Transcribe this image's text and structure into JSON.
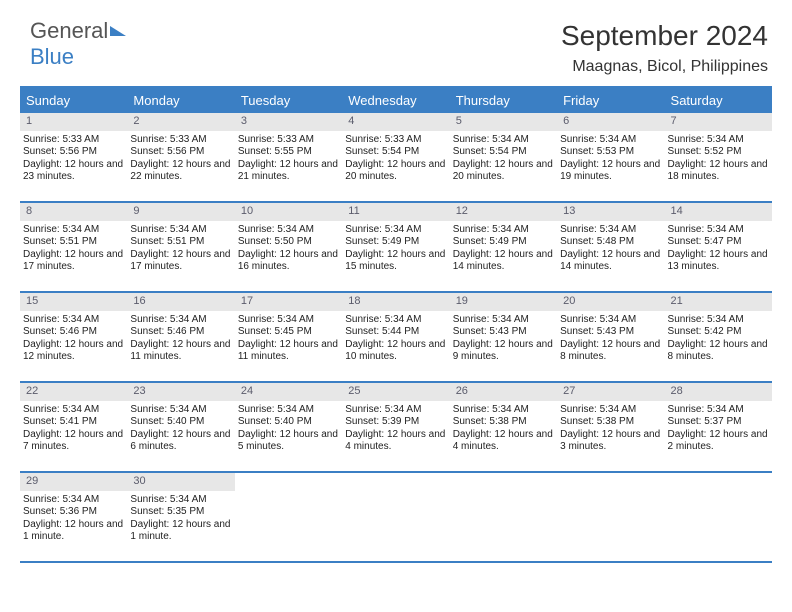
{
  "logo": {
    "text1": "General",
    "text2": "Blue"
  },
  "title": "September 2024",
  "location": "Maagnas, Bicol, Philippines",
  "colors": {
    "header_bg": "#3b7fc4",
    "header_text": "#ffffff",
    "daynum_bg": "#e7e7e7",
    "daynum_text": "#5b5c6c",
    "body_text": "#222222",
    "page_bg": "#ffffff"
  },
  "weekdays": [
    "Sunday",
    "Monday",
    "Tuesday",
    "Wednesday",
    "Thursday",
    "Friday",
    "Saturday"
  ],
  "weeks": [
    [
      {
        "day": "1",
        "sunrise": "Sunrise: 5:33 AM",
        "sunset": "Sunset: 5:56 PM",
        "daylight": "Daylight: 12 hours and 23 minutes."
      },
      {
        "day": "2",
        "sunrise": "Sunrise: 5:33 AM",
        "sunset": "Sunset: 5:56 PM",
        "daylight": "Daylight: 12 hours and 22 minutes."
      },
      {
        "day": "3",
        "sunrise": "Sunrise: 5:33 AM",
        "sunset": "Sunset: 5:55 PM",
        "daylight": "Daylight: 12 hours and 21 minutes."
      },
      {
        "day": "4",
        "sunrise": "Sunrise: 5:33 AM",
        "sunset": "Sunset: 5:54 PM",
        "daylight": "Daylight: 12 hours and 20 minutes."
      },
      {
        "day": "5",
        "sunrise": "Sunrise: 5:34 AM",
        "sunset": "Sunset: 5:54 PM",
        "daylight": "Daylight: 12 hours and 20 minutes."
      },
      {
        "day": "6",
        "sunrise": "Sunrise: 5:34 AM",
        "sunset": "Sunset: 5:53 PM",
        "daylight": "Daylight: 12 hours and 19 minutes."
      },
      {
        "day": "7",
        "sunrise": "Sunrise: 5:34 AM",
        "sunset": "Sunset: 5:52 PM",
        "daylight": "Daylight: 12 hours and 18 minutes."
      }
    ],
    [
      {
        "day": "8",
        "sunrise": "Sunrise: 5:34 AM",
        "sunset": "Sunset: 5:51 PM",
        "daylight": "Daylight: 12 hours and 17 minutes."
      },
      {
        "day": "9",
        "sunrise": "Sunrise: 5:34 AM",
        "sunset": "Sunset: 5:51 PM",
        "daylight": "Daylight: 12 hours and 17 minutes."
      },
      {
        "day": "10",
        "sunrise": "Sunrise: 5:34 AM",
        "sunset": "Sunset: 5:50 PM",
        "daylight": "Daylight: 12 hours and 16 minutes."
      },
      {
        "day": "11",
        "sunrise": "Sunrise: 5:34 AM",
        "sunset": "Sunset: 5:49 PM",
        "daylight": "Daylight: 12 hours and 15 minutes."
      },
      {
        "day": "12",
        "sunrise": "Sunrise: 5:34 AM",
        "sunset": "Sunset: 5:49 PM",
        "daylight": "Daylight: 12 hours and 14 minutes."
      },
      {
        "day": "13",
        "sunrise": "Sunrise: 5:34 AM",
        "sunset": "Sunset: 5:48 PM",
        "daylight": "Daylight: 12 hours and 14 minutes."
      },
      {
        "day": "14",
        "sunrise": "Sunrise: 5:34 AM",
        "sunset": "Sunset: 5:47 PM",
        "daylight": "Daylight: 12 hours and 13 minutes."
      }
    ],
    [
      {
        "day": "15",
        "sunrise": "Sunrise: 5:34 AM",
        "sunset": "Sunset: 5:46 PM",
        "daylight": "Daylight: 12 hours and 12 minutes."
      },
      {
        "day": "16",
        "sunrise": "Sunrise: 5:34 AM",
        "sunset": "Sunset: 5:46 PM",
        "daylight": "Daylight: 12 hours and 11 minutes."
      },
      {
        "day": "17",
        "sunrise": "Sunrise: 5:34 AM",
        "sunset": "Sunset: 5:45 PM",
        "daylight": "Daylight: 12 hours and 11 minutes."
      },
      {
        "day": "18",
        "sunrise": "Sunrise: 5:34 AM",
        "sunset": "Sunset: 5:44 PM",
        "daylight": "Daylight: 12 hours and 10 minutes."
      },
      {
        "day": "19",
        "sunrise": "Sunrise: 5:34 AM",
        "sunset": "Sunset: 5:43 PM",
        "daylight": "Daylight: 12 hours and 9 minutes."
      },
      {
        "day": "20",
        "sunrise": "Sunrise: 5:34 AM",
        "sunset": "Sunset: 5:43 PM",
        "daylight": "Daylight: 12 hours and 8 minutes."
      },
      {
        "day": "21",
        "sunrise": "Sunrise: 5:34 AM",
        "sunset": "Sunset: 5:42 PM",
        "daylight": "Daylight: 12 hours and 8 minutes."
      }
    ],
    [
      {
        "day": "22",
        "sunrise": "Sunrise: 5:34 AM",
        "sunset": "Sunset: 5:41 PM",
        "daylight": "Daylight: 12 hours and 7 minutes."
      },
      {
        "day": "23",
        "sunrise": "Sunrise: 5:34 AM",
        "sunset": "Sunset: 5:40 PM",
        "daylight": "Daylight: 12 hours and 6 minutes."
      },
      {
        "day": "24",
        "sunrise": "Sunrise: 5:34 AM",
        "sunset": "Sunset: 5:40 PM",
        "daylight": "Daylight: 12 hours and 5 minutes."
      },
      {
        "day": "25",
        "sunrise": "Sunrise: 5:34 AM",
        "sunset": "Sunset: 5:39 PM",
        "daylight": "Daylight: 12 hours and 4 minutes."
      },
      {
        "day": "26",
        "sunrise": "Sunrise: 5:34 AM",
        "sunset": "Sunset: 5:38 PM",
        "daylight": "Daylight: 12 hours and 4 minutes."
      },
      {
        "day": "27",
        "sunrise": "Sunrise: 5:34 AM",
        "sunset": "Sunset: 5:38 PM",
        "daylight": "Daylight: 12 hours and 3 minutes."
      },
      {
        "day": "28",
        "sunrise": "Sunrise: 5:34 AM",
        "sunset": "Sunset: 5:37 PM",
        "daylight": "Daylight: 12 hours and 2 minutes."
      }
    ],
    [
      {
        "day": "29",
        "sunrise": "Sunrise: 5:34 AM",
        "sunset": "Sunset: 5:36 PM",
        "daylight": "Daylight: 12 hours and 1 minute."
      },
      {
        "day": "30",
        "sunrise": "Sunrise: 5:34 AM",
        "sunset": "Sunset: 5:35 PM",
        "daylight": "Daylight: 12 hours and 1 minute."
      },
      null,
      null,
      null,
      null,
      null
    ]
  ]
}
